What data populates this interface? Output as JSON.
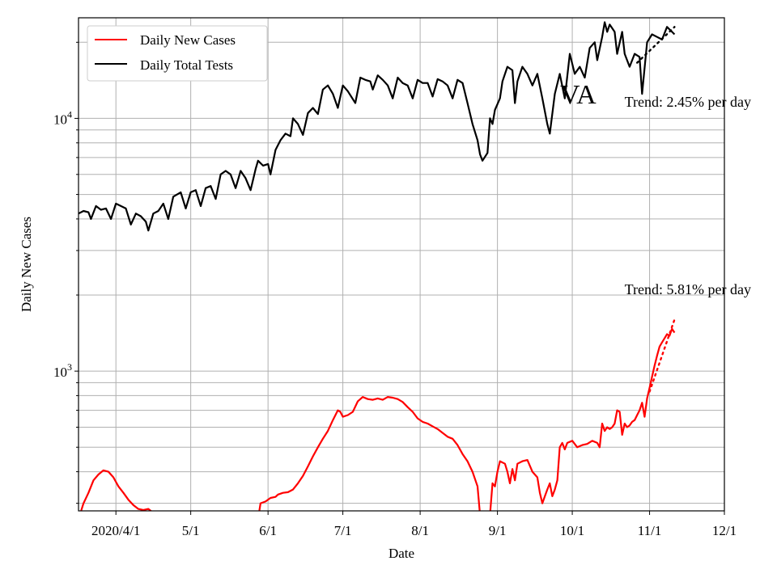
{
  "chart_data": {
    "type": "line",
    "xlabel": "Date",
    "ylabel": "Daily New Cases",
    "yscale": "log",
    "grid": true,
    "legend_position": "upper-left",
    "x_range": [
      "2020-03-17",
      "2020-12-01"
    ],
    "ylim": [
      280,
      25000
    ],
    "x_ticks": [
      {
        "date": "2020-04-01",
        "label": "2020/4/1"
      },
      {
        "date": "2020-05-01",
        "label": "5/1"
      },
      {
        "date": "2020-06-01",
        "label": "6/1"
      },
      {
        "date": "2020-07-01",
        "label": "7/1"
      },
      {
        "date": "2020-08-01",
        "label": "8/1"
      },
      {
        "date": "2020-09-01",
        "label": "9/1"
      },
      {
        "date": "2020-10-01",
        "label": "10/1"
      },
      {
        "date": "2020-11-01",
        "label": "11/1"
      },
      {
        "date": "2020-12-01",
        "label": "12/1"
      }
    ],
    "y_major_ticks": [
      {
        "value": 1000,
        "base": "10",
        "exp": "3"
      },
      {
        "value": 10000,
        "base": "10",
        "exp": "4"
      }
    ],
    "y_minor_ticks": [
      300,
      400,
      500,
      600,
      700,
      800,
      900,
      2000,
      3000,
      4000,
      5000,
      6000,
      7000,
      8000,
      9000,
      20000
    ],
    "annotation_state": "VA",
    "series": [
      {
        "name": "Daily New Cases",
        "color": "#ff0000",
        "points": [
          [
            "2020-03-17",
            260
          ],
          [
            "2020-03-19",
            300
          ],
          [
            "2020-03-21",
            330
          ],
          [
            "2020-03-23",
            370
          ],
          [
            "2020-03-25",
            390
          ],
          [
            "2020-03-27",
            405
          ],
          [
            "2020-03-29",
            400
          ],
          [
            "2020-03-31",
            380
          ],
          [
            "2020-04-02",
            350
          ],
          [
            "2020-04-04",
            330
          ],
          [
            "2020-04-06",
            310
          ],
          [
            "2020-04-08",
            295
          ],
          [
            "2020-04-10",
            285
          ],
          [
            "2020-04-12",
            282
          ],
          [
            "2020-04-14",
            285
          ],
          [
            "2020-04-16",
            275
          ],
          [
            "2020-04-18",
            260
          ],
          [
            "2020-05-28",
            260
          ],
          [
            "2020-05-29",
            300
          ],
          [
            "2020-05-31",
            305
          ],
          [
            "2020-06-02",
            315
          ],
          [
            "2020-06-04",
            318
          ],
          [
            "2020-06-05",
            325
          ],
          [
            "2020-06-07",
            330
          ],
          [
            "2020-06-09",
            332
          ],
          [
            "2020-06-11",
            340
          ],
          [
            "2020-06-13",
            360
          ],
          [
            "2020-06-15",
            385
          ],
          [
            "2020-06-17",
            420
          ],
          [
            "2020-06-19",
            460
          ],
          [
            "2020-06-21",
            500
          ],
          [
            "2020-06-23",
            540
          ],
          [
            "2020-06-25",
            580
          ],
          [
            "2020-06-27",
            640
          ],
          [
            "2020-06-29",
            700
          ],
          [
            "2020-06-30",
            690
          ],
          [
            "2020-07-01",
            660
          ],
          [
            "2020-07-03",
            670
          ],
          [
            "2020-07-05",
            690
          ],
          [
            "2020-07-07",
            760
          ],
          [
            "2020-07-09",
            790
          ],
          [
            "2020-07-11",
            775
          ],
          [
            "2020-07-13",
            770
          ],
          [
            "2020-07-15",
            780
          ],
          [
            "2020-07-17",
            770
          ],
          [
            "2020-07-19",
            790
          ],
          [
            "2020-07-21",
            785
          ],
          [
            "2020-07-23",
            775
          ],
          [
            "2020-07-25",
            755
          ],
          [
            "2020-07-27",
            720
          ],
          [
            "2020-07-29",
            690
          ],
          [
            "2020-07-31",
            650
          ],
          [
            "2020-08-02",
            630
          ],
          [
            "2020-08-04",
            620
          ],
          [
            "2020-08-06",
            605
          ],
          [
            "2020-08-08",
            590
          ],
          [
            "2020-08-10",
            570
          ],
          [
            "2020-08-12",
            550
          ],
          [
            "2020-08-14",
            540
          ],
          [
            "2020-08-16",
            510
          ],
          [
            "2020-08-18",
            470
          ],
          [
            "2020-08-20",
            440
          ],
          [
            "2020-08-22",
            400
          ],
          [
            "2020-08-24",
            350
          ],
          [
            "2020-08-25",
            270
          ],
          [
            "2020-08-29",
            270
          ],
          [
            "2020-08-30",
            360
          ],
          [
            "2020-08-31",
            350
          ],
          [
            "2020-09-01",
            400
          ],
          [
            "2020-09-02",
            440
          ],
          [
            "2020-09-04",
            430
          ],
          [
            "2020-09-05",
            400
          ],
          [
            "2020-09-06",
            360
          ],
          [
            "2020-09-07",
            410
          ],
          [
            "2020-09-08",
            370
          ],
          [
            "2020-09-09",
            430
          ],
          [
            "2020-09-11",
            440
          ],
          [
            "2020-09-13",
            445
          ],
          [
            "2020-09-15",
            400
          ],
          [
            "2020-09-17",
            380
          ],
          [
            "2020-09-18",
            330
          ],
          [
            "2020-09-19",
            300
          ],
          [
            "2020-09-20",
            320
          ],
          [
            "2020-09-21",
            340
          ],
          [
            "2020-09-22",
            360
          ],
          [
            "2020-09-23",
            320
          ],
          [
            "2020-09-24",
            340
          ],
          [
            "2020-09-25",
            370
          ],
          [
            "2020-09-26",
            500
          ],
          [
            "2020-09-27",
            520
          ],
          [
            "2020-09-28",
            490
          ],
          [
            "2020-09-29",
            520
          ],
          [
            "2020-10-01",
            530
          ],
          [
            "2020-10-03",
            500
          ],
          [
            "2020-10-05",
            510
          ],
          [
            "2020-10-07",
            515
          ],
          [
            "2020-10-09",
            530
          ],
          [
            "2020-10-11",
            520
          ],
          [
            "2020-10-12",
            500
          ],
          [
            "2020-10-13",
            620
          ],
          [
            "2020-10-14",
            580
          ],
          [
            "2020-10-15",
            600
          ],
          [
            "2020-10-16",
            590
          ],
          [
            "2020-10-17",
            600
          ],
          [
            "2020-10-18",
            620
          ],
          [
            "2020-10-19",
            700
          ],
          [
            "2020-10-20",
            690
          ],
          [
            "2020-10-21",
            560
          ],
          [
            "2020-10-22",
            620
          ],
          [
            "2020-10-23",
            600
          ],
          [
            "2020-10-24",
            610
          ],
          [
            "2020-10-25",
            630
          ],
          [
            "2020-10-26",
            640
          ],
          [
            "2020-10-27",
            670
          ],
          [
            "2020-10-28",
            700
          ],
          [
            "2020-10-29",
            750
          ],
          [
            "2020-10-30",
            660
          ],
          [
            "2020-10-31",
            780
          ],
          [
            "2020-11-01",
            860
          ],
          [
            "2020-11-02",
            950
          ],
          [
            "2020-11-03",
            1050
          ],
          [
            "2020-11-04",
            1150
          ],
          [
            "2020-11-05",
            1250
          ],
          [
            "2020-11-06",
            1300
          ],
          [
            "2020-11-07",
            1350
          ],
          [
            "2020-11-08",
            1400
          ],
          [
            "2020-11-09",
            1380
          ],
          [
            "2020-11-10",
            1470
          ],
          [
            "2020-11-11",
            1420
          ]
        ]
      },
      {
        "name": "Daily Total Tests",
        "color": "#000000",
        "points": [
          [
            "2020-03-17",
            4200
          ],
          [
            "2020-03-19",
            4300
          ],
          [
            "2020-03-21",
            4250
          ],
          [
            "2020-03-22",
            4000
          ],
          [
            "2020-03-24",
            4500
          ],
          [
            "2020-03-26",
            4350
          ],
          [
            "2020-03-28",
            4400
          ],
          [
            "2020-03-30",
            4000
          ],
          [
            "2020-04-01",
            4600
          ],
          [
            "2020-04-03",
            4500
          ],
          [
            "2020-04-05",
            4400
          ],
          [
            "2020-04-07",
            3800
          ],
          [
            "2020-04-09",
            4200
          ],
          [
            "2020-04-11",
            4100
          ],
          [
            "2020-04-13",
            3900
          ],
          [
            "2020-04-14",
            3600
          ],
          [
            "2020-04-16",
            4200
          ],
          [
            "2020-04-18",
            4300
          ],
          [
            "2020-04-20",
            4600
          ],
          [
            "2020-04-22",
            4000
          ],
          [
            "2020-04-24",
            4900
          ],
          [
            "2020-04-27",
            5100
          ],
          [
            "2020-04-29",
            4400
          ],
          [
            "2020-05-01",
            5100
          ],
          [
            "2020-05-03",
            5200
          ],
          [
            "2020-05-05",
            4500
          ],
          [
            "2020-05-07",
            5300
          ],
          [
            "2020-05-09",
            5400
          ],
          [
            "2020-05-11",
            4800
          ],
          [
            "2020-05-13",
            6000
          ],
          [
            "2020-05-15",
            6200
          ],
          [
            "2020-05-17",
            6000
          ],
          [
            "2020-05-19",
            5300
          ],
          [
            "2020-05-21",
            6200
          ],
          [
            "2020-05-23",
            5800
          ],
          [
            "2020-05-25",
            5200
          ],
          [
            "2020-05-27",
            6300
          ],
          [
            "2020-05-28",
            6800
          ],
          [
            "2020-05-30",
            6500
          ],
          [
            "2020-06-01",
            6600
          ],
          [
            "2020-06-02",
            6000
          ],
          [
            "2020-06-04",
            7500
          ],
          [
            "2020-06-06",
            8200
          ],
          [
            "2020-06-08",
            8700
          ],
          [
            "2020-06-10",
            8500
          ],
          [
            "2020-06-11",
            10000
          ],
          [
            "2020-06-13",
            9500
          ],
          [
            "2020-06-15",
            8600
          ],
          [
            "2020-06-17",
            10500
          ],
          [
            "2020-06-19",
            11000
          ],
          [
            "2020-06-21",
            10400
          ],
          [
            "2020-06-23",
            13000
          ],
          [
            "2020-06-25",
            13500
          ],
          [
            "2020-06-27",
            12500
          ],
          [
            "2020-06-29",
            11000
          ],
          [
            "2020-07-01",
            13500
          ],
          [
            "2020-07-03",
            12800
          ],
          [
            "2020-07-06",
            11500
          ],
          [
            "2020-07-08",
            14500
          ],
          [
            "2020-07-10",
            14200
          ],
          [
            "2020-07-12",
            14000
          ],
          [
            "2020-07-13",
            13000
          ],
          [
            "2020-07-15",
            14800
          ],
          [
            "2020-07-17",
            14200
          ],
          [
            "2020-07-19",
            13500
          ],
          [
            "2020-07-21",
            12000
          ],
          [
            "2020-07-23",
            14500
          ],
          [
            "2020-07-25",
            13800
          ],
          [
            "2020-07-27",
            13500
          ],
          [
            "2020-07-29",
            12000
          ],
          [
            "2020-07-31",
            14200
          ],
          [
            "2020-08-02",
            13800
          ],
          [
            "2020-08-04",
            13800
          ],
          [
            "2020-08-06",
            12200
          ],
          [
            "2020-08-08",
            14300
          ],
          [
            "2020-08-10",
            14000
          ],
          [
            "2020-08-12",
            13500
          ],
          [
            "2020-08-14",
            12000
          ],
          [
            "2020-08-16",
            14200
          ],
          [
            "2020-08-18",
            13800
          ],
          [
            "2020-08-20",
            11500
          ],
          [
            "2020-08-22",
            9500
          ],
          [
            "2020-08-24",
            8200
          ],
          [
            "2020-08-25",
            7200
          ],
          [
            "2020-08-26",
            6800
          ],
          [
            "2020-08-28",
            7300
          ],
          [
            "2020-08-29",
            10000
          ],
          [
            "2020-08-30",
            9500
          ],
          [
            "2020-08-31",
            10800
          ],
          [
            "2020-09-02",
            12000
          ],
          [
            "2020-09-03",
            14000
          ],
          [
            "2020-09-05",
            16000
          ],
          [
            "2020-09-07",
            15500
          ],
          [
            "2020-09-08",
            11500
          ],
          [
            "2020-09-09",
            14000
          ],
          [
            "2020-09-11",
            16000
          ],
          [
            "2020-09-13",
            15000
          ],
          [
            "2020-09-15",
            13500
          ],
          [
            "2020-09-17",
            15000
          ],
          [
            "2020-09-19",
            12000
          ],
          [
            "2020-09-21",
            9500
          ],
          [
            "2020-09-22",
            8700
          ],
          [
            "2020-09-24",
            12500
          ],
          [
            "2020-09-26",
            15000
          ],
          [
            "2020-09-28",
            12000
          ],
          [
            "2020-09-30",
            18000
          ],
          [
            "2020-10-02",
            15000
          ],
          [
            "2020-10-04",
            16000
          ],
          [
            "2020-10-06",
            14500
          ],
          [
            "2020-10-08",
            19000
          ],
          [
            "2020-10-10",
            20000
          ],
          [
            "2020-10-11",
            17000
          ],
          [
            "2020-10-13",
            21000
          ],
          [
            "2020-10-14",
            24000
          ],
          [
            "2020-10-15",
            22000
          ],
          [
            "2020-10-16",
            23500
          ],
          [
            "2020-10-18",
            22000
          ],
          [
            "2020-10-19",
            18000
          ],
          [
            "2020-10-21",
            22000
          ],
          [
            "2020-10-22",
            18000
          ],
          [
            "2020-10-24",
            16000
          ],
          [
            "2020-10-26",
            18000
          ],
          [
            "2020-10-28",
            17500
          ],
          [
            "2020-10-29",
            12500
          ],
          [
            "2020-10-31",
            20000
          ],
          [
            "2020-11-02",
            21500
          ],
          [
            "2020-11-04",
            21000
          ],
          [
            "2020-11-06",
            20500
          ],
          [
            "2020-11-08",
            23000
          ],
          [
            "2020-11-10",
            22000
          ],
          [
            "2020-11-11",
            21500
          ]
        ]
      }
    ],
    "trend_lines": [
      {
        "series": "Daily New Cases",
        "label": "Trend: 5.81% per day",
        "start": [
          "2020-11-01",
          830
        ],
        "end": [
          "2020-11-11",
          1600
        ]
      },
      {
        "series": "Daily Total Tests",
        "label": "Trend: 2.45% per day",
        "start": [
          "2020-10-27",
          16600
        ],
        "end": [
          "2020-11-11",
          23000
        ]
      }
    ]
  }
}
